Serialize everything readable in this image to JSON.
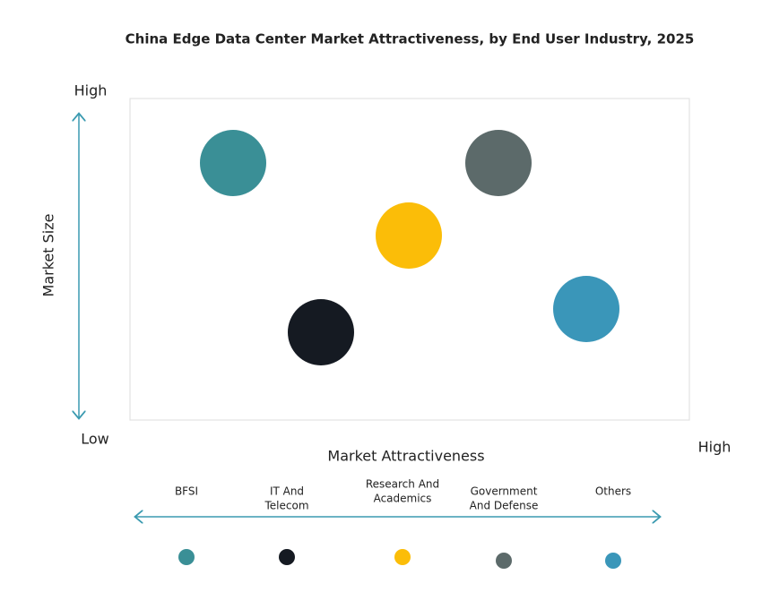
{
  "title": "China Edge Data Center Market Attractiveness,  by End User Industry, 2025",
  "y_axis": {
    "label": "Market Size",
    "high": "High",
    "low": "Low"
  },
  "x_axis": {
    "label": "Market Attractiveness",
    "high": "High"
  },
  "segments": [
    {
      "label_lines": [
        "BFSI"
      ],
      "color": "#3a8f96"
    },
    {
      "label_lines": [
        "IT And",
        "Telecom"
      ],
      "color": "#151a22"
    },
    {
      "label_lines": [
        "Research And",
        "Academics"
      ],
      "color": "#fbbd08"
    },
    {
      "label_lines": [
        "Government",
        "And Defense"
      ],
      "color": "#5c6a6a"
    },
    {
      "label_lines": [
        "Others"
      ],
      "color": "#3a96b9"
    }
  ]
}
